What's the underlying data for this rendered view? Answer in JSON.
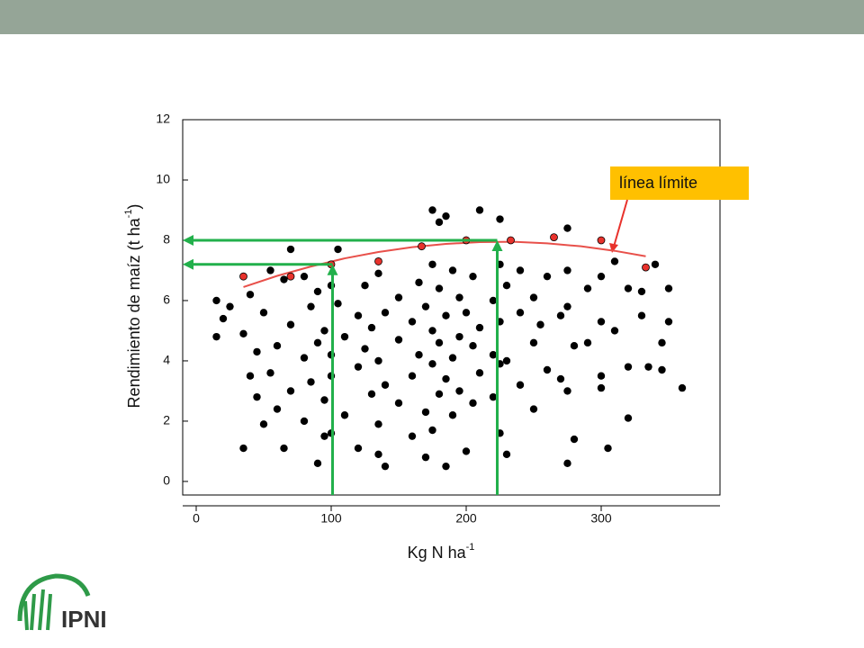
{
  "chart_data": {
    "type": "scatter",
    "xlabel": {
      "text": "Kg N ha",
      "sup": "-1"
    },
    "ylabel": {
      "text": "Rendimiento de maíz (t ha",
      "sup": "-1",
      "tail": ")"
    },
    "xlim": [
      -10,
      388
    ],
    "xticks": [
      0,
      100,
      200,
      300
    ],
    "ylim": [
      -0.45,
      12
    ],
    "yticks": [
      0,
      2,
      4,
      6,
      8,
      10,
      12
    ],
    "point_color": "#000000",
    "points": [
      [
        15,
        6.0
      ],
      [
        15,
        4.8
      ],
      [
        20,
        5.4
      ],
      [
        25,
        5.8
      ],
      [
        35,
        1.1
      ],
      [
        35,
        4.9
      ],
      [
        40,
        3.5
      ],
      [
        40,
        6.2
      ],
      [
        45,
        4.3
      ],
      [
        45,
        2.8
      ],
      [
        50,
        1.9
      ],
      [
        50,
        5.6
      ],
      [
        55,
        7.0
      ],
      [
        55,
        3.6
      ],
      [
        60,
        2.4
      ],
      [
        60,
        4.5
      ],
      [
        65,
        6.7
      ],
      [
        65,
        1.1
      ],
      [
        70,
        7.7
      ],
      [
        70,
        5.2
      ],
      [
        70,
        3.0
      ],
      [
        80,
        6.8
      ],
      [
        80,
        4.1
      ],
      [
        80,
        2.0
      ],
      [
        85,
        5.8
      ],
      [
        85,
        3.3
      ],
      [
        90,
        6.3
      ],
      [
        90,
        4.6
      ],
      [
        90,
        0.6
      ],
      [
        95,
        5.0
      ],
      [
        95,
        2.7
      ],
      [
        95,
        1.5
      ],
      [
        100,
        6.5
      ],
      [
        100,
        4.2
      ],
      [
        100,
        3.5
      ],
      [
        100,
        1.6
      ],
      [
        105,
        5.9
      ],
      [
        105,
        7.7
      ],
      [
        110,
        4.8
      ],
      [
        110,
        2.2
      ],
      [
        120,
        5.5
      ],
      [
        120,
        3.8
      ],
      [
        120,
        1.1
      ],
      [
        125,
        6.5
      ],
      [
        125,
        4.4
      ],
      [
        130,
        5.1
      ],
      [
        130,
        2.9
      ],
      [
        135,
        6.9
      ],
      [
        135,
        4.0
      ],
      [
        135,
        1.9
      ],
      [
        135,
        0.9
      ],
      [
        140,
        5.6
      ],
      [
        140,
        3.2
      ],
      [
        140,
        0.5
      ],
      [
        150,
        4.7
      ],
      [
        150,
        2.6
      ],
      [
        150,
        6.1
      ],
      [
        160,
        5.3
      ],
      [
        160,
        3.5
      ],
      [
        160,
        1.5
      ],
      [
        165,
        6.6
      ],
      [
        165,
        4.2
      ],
      [
        170,
        5.8
      ],
      [
        170,
        2.3
      ],
      [
        170,
        0.8
      ],
      [
        175,
        9.0
      ],
      [
        175,
        7.2
      ],
      [
        175,
        5.0
      ],
      [
        175,
        3.9
      ],
      [
        175,
        1.7
      ],
      [
        180,
        8.6
      ],
      [
        180,
        6.4
      ],
      [
        180,
        4.6
      ],
      [
        180,
        2.9
      ],
      [
        185,
        8.8
      ],
      [
        185,
        5.5
      ],
      [
        185,
        3.4
      ],
      [
        185,
        0.5
      ],
      [
        190,
        7.0
      ],
      [
        190,
        4.1
      ],
      [
        190,
        2.2
      ],
      [
        195,
        6.1
      ],
      [
        195,
        4.8
      ],
      [
        195,
        3.0
      ],
      [
        200,
        8.0
      ],
      [
        200,
        5.6
      ],
      [
        200,
        1.0
      ],
      [
        205,
        6.8
      ],
      [
        205,
        4.5
      ],
      [
        205,
        2.6
      ],
      [
        210,
        9.0
      ],
      [
        210,
        5.1
      ],
      [
        210,
        3.6
      ],
      [
        220,
        6.0
      ],
      [
        220,
        4.2
      ],
      [
        220,
        2.8
      ],
      [
        225,
        8.7
      ],
      [
        225,
        7.2
      ],
      [
        225,
        5.3
      ],
      [
        225,
        3.9
      ],
      [
        225,
        1.6
      ],
      [
        230,
        6.5
      ],
      [
        230,
        4.0
      ],
      [
        230,
        0.9
      ],
      [
        240,
        5.6
      ],
      [
        240,
        3.2
      ],
      [
        240,
        7.0
      ],
      [
        250,
        6.1
      ],
      [
        250,
        4.6
      ],
      [
        250,
        2.4
      ],
      [
        255,
        5.2
      ],
      [
        260,
        3.7
      ],
      [
        260,
        6.8
      ],
      [
        270,
        5.5
      ],
      [
        270,
        3.4
      ],
      [
        275,
        8.4
      ],
      [
        275,
        7.0
      ],
      [
        275,
        5.8
      ],
      [
        275,
        3.0
      ],
      [
        275,
        0.6
      ],
      [
        280,
        4.5
      ],
      [
        280,
        1.4
      ],
      [
        290,
        6.4
      ],
      [
        290,
        4.6
      ],
      [
        300,
        6.8
      ],
      [
        300,
        5.3
      ],
      [
        300,
        3.5
      ],
      [
        300,
        3.1
      ],
      [
        305,
        1.1
      ],
      [
        310,
        7.3
      ],
      [
        310,
        5.0
      ],
      [
        320,
        6.4
      ],
      [
        320,
        3.8
      ],
      [
        320,
        2.1
      ],
      [
        330,
        6.3
      ],
      [
        330,
        5.5
      ],
      [
        335,
        3.8
      ],
      [
        340,
        7.2
      ],
      [
        345,
        4.6
      ],
      [
        345,
        3.7
      ],
      [
        350,
        6.4
      ],
      [
        350,
        5.3
      ],
      [
        360,
        3.1
      ]
    ],
    "boundary_color": "#e8322c",
    "boundary_points": [
      [
        35,
        6.8
      ],
      [
        70,
        6.8
      ],
      [
        100,
        7.2
      ],
      [
        135,
        7.3
      ],
      [
        167,
        7.8
      ],
      [
        200,
        8.0
      ],
      [
        233,
        8.0
      ],
      [
        265,
        8.1
      ],
      [
        300,
        8.0
      ],
      [
        333,
        7.1
      ]
    ],
    "curve_color": "#e8504a",
    "curve": {
      "x": [
        35,
        60,
        85,
        110,
        135,
        160,
        185,
        210,
        235,
        260,
        285,
        310,
        333
      ],
      "values": [
        6.45,
        6.82,
        7.13,
        7.4,
        7.61,
        7.77,
        7.88,
        7.94,
        7.95,
        7.9,
        7.8,
        7.65,
        7.47
      ]
    },
    "arrow_color": "#22b04b",
    "arrows": [
      {
        "x": 101,
        "y": 7.2
      },
      {
        "x": 223,
        "y": 8.0
      }
    ],
    "annotation": "línea límite",
    "logo": "IPNI"
  }
}
